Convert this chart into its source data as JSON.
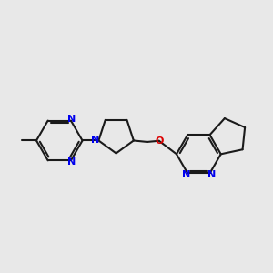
{
  "bg_color": "#e8e8e8",
  "bond_color": "#1a1a1a",
  "N_color": "#0000ee",
  "O_color": "#dd0000",
  "lw": 1.5,
  "fs": 8.0,
  "xlim": [
    0,
    10
  ],
  "ylim": [
    3.0,
    8.5
  ]
}
